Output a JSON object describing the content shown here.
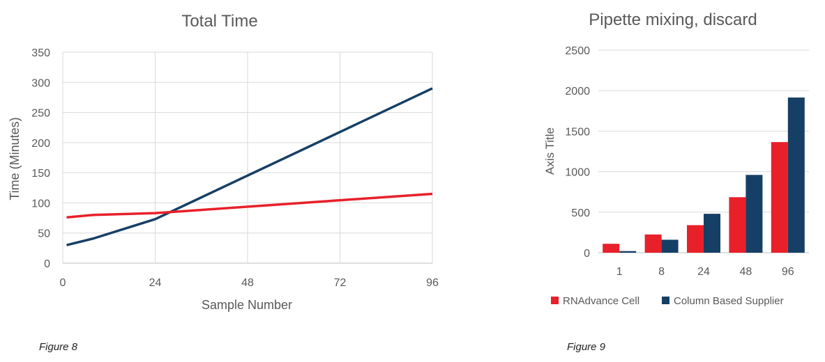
{
  "colors": {
    "red": "#e8202a",
    "navy": "#163f66",
    "grid": "#d9d9d9",
    "axis": "#bfbfbf",
    "text": "#595959"
  },
  "captions": {
    "fig8": "Figure 8",
    "fig9": "Figure 9"
  },
  "chart_data": [
    {
      "type": "line",
      "title": "Total Time",
      "xlabel": "Sample Number",
      "ylabel": "Time (Minutes)",
      "xlim": [
        0,
        96
      ],
      "ylim": [
        0,
        350
      ],
      "xticks": [
        0,
        24,
        48,
        72,
        96
      ],
      "yticks": [
        0,
        50,
        100,
        150,
        200,
        250,
        300,
        350
      ],
      "grid": true,
      "series": [
        {
          "color": "#163f66",
          "x": [
            1,
            8,
            24,
            96
          ],
          "y": [
            30,
            41,
            73,
            290
          ]
        },
        {
          "color": "#e8202a",
          "x": [
            1,
            8,
            24,
            96
          ],
          "y": [
            76,
            80,
            83,
            115
          ]
        }
      ]
    },
    {
      "type": "bar",
      "title": "Pipette mixing, discard",
      "xlabel": "",
      "ylabel": "Axis Title",
      "categories": [
        "1",
        "8",
        "24",
        "48",
        "96"
      ],
      "ylim": [
        0,
        2500
      ],
      "yticks": [
        0,
        500,
        1000,
        1500,
        2000,
        2500
      ],
      "grid": true,
      "legend_position": "bottom",
      "series": [
        {
          "name": "RNAdvance Cell",
          "color": "#e8202a",
          "values": [
            110,
            225,
            340,
            685,
            1365
          ]
        },
        {
          "name": "Column Based Supplier",
          "color": "#163f66",
          "values": [
            20,
            160,
            480,
            960,
            1915
          ]
        }
      ]
    }
  ]
}
